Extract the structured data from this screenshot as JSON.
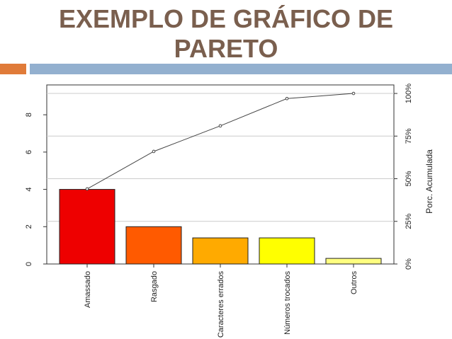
{
  "chart_data": {
    "type": "pareto",
    "title": "EXEMPLO DE GRÁFICO DE PARETO",
    "y2_label": "Porc. Acumulada",
    "categories": [
      "Amassado",
      "Rasgado",
      "Caracteres errados",
      "Números trocados",
      "Outros"
    ],
    "series": [
      {
        "values": [
          4,
          2,
          1.4,
          1.4,
          0.3
        ],
        "colors": [
          "#ee0000",
          "#ff5a00",
          "#ffaa00",
          "#ffff00",
          "#ffff80"
        ]
      },
      {
        "values": [
          44,
          66,
          81,
          97,
          100
        ],
        "axis": "y2",
        "color": "#444444"
      }
    ],
    "ylim": [
      0,
      9.6
    ],
    "yticks": [
      0,
      2,
      4,
      6,
      8
    ],
    "y2lim": [
      0,
      105
    ],
    "y2ticks": [
      {
        "value": 0,
        "label": "0%"
      },
      {
        "value": 25,
        "label": "25%"
      },
      {
        "value": 50,
        "label": "50%"
      },
      {
        "value": 75,
        "label": "75%"
      },
      {
        "value": 100,
        "label": "100%"
      }
    ],
    "grid": true
  }
}
